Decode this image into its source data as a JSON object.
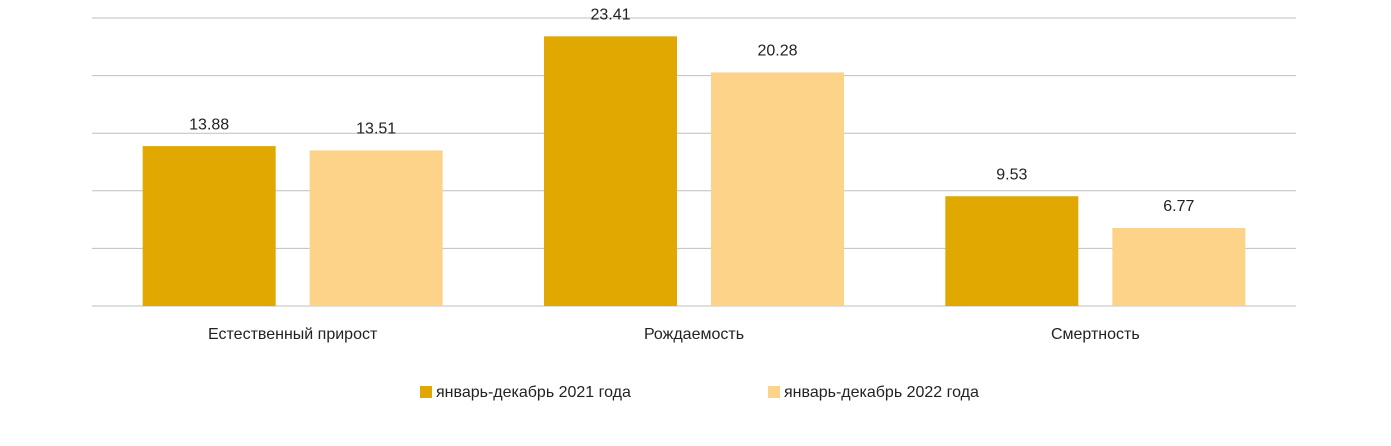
{
  "chart_data": {
    "type": "bar",
    "categories": [
      "Естественный прирост",
      "Рождаемость",
      "Смертность"
    ],
    "series": [
      {
        "name": "январь-декабрь 2021 года",
        "color": "#e0a800",
        "values": [
          13.88,
          23.41,
          9.53
        ]
      },
      {
        "name": "январь-декабрь 2022 года",
        "color": "#fdd38a",
        "values": [
          13.51,
          20.28,
          6.77
        ]
      }
    ],
    "ylim": [
      0,
      25
    ],
    "yticks": [
      0,
      5,
      10,
      15,
      20,
      25
    ],
    "grid": true,
    "legend": "bottom"
  }
}
